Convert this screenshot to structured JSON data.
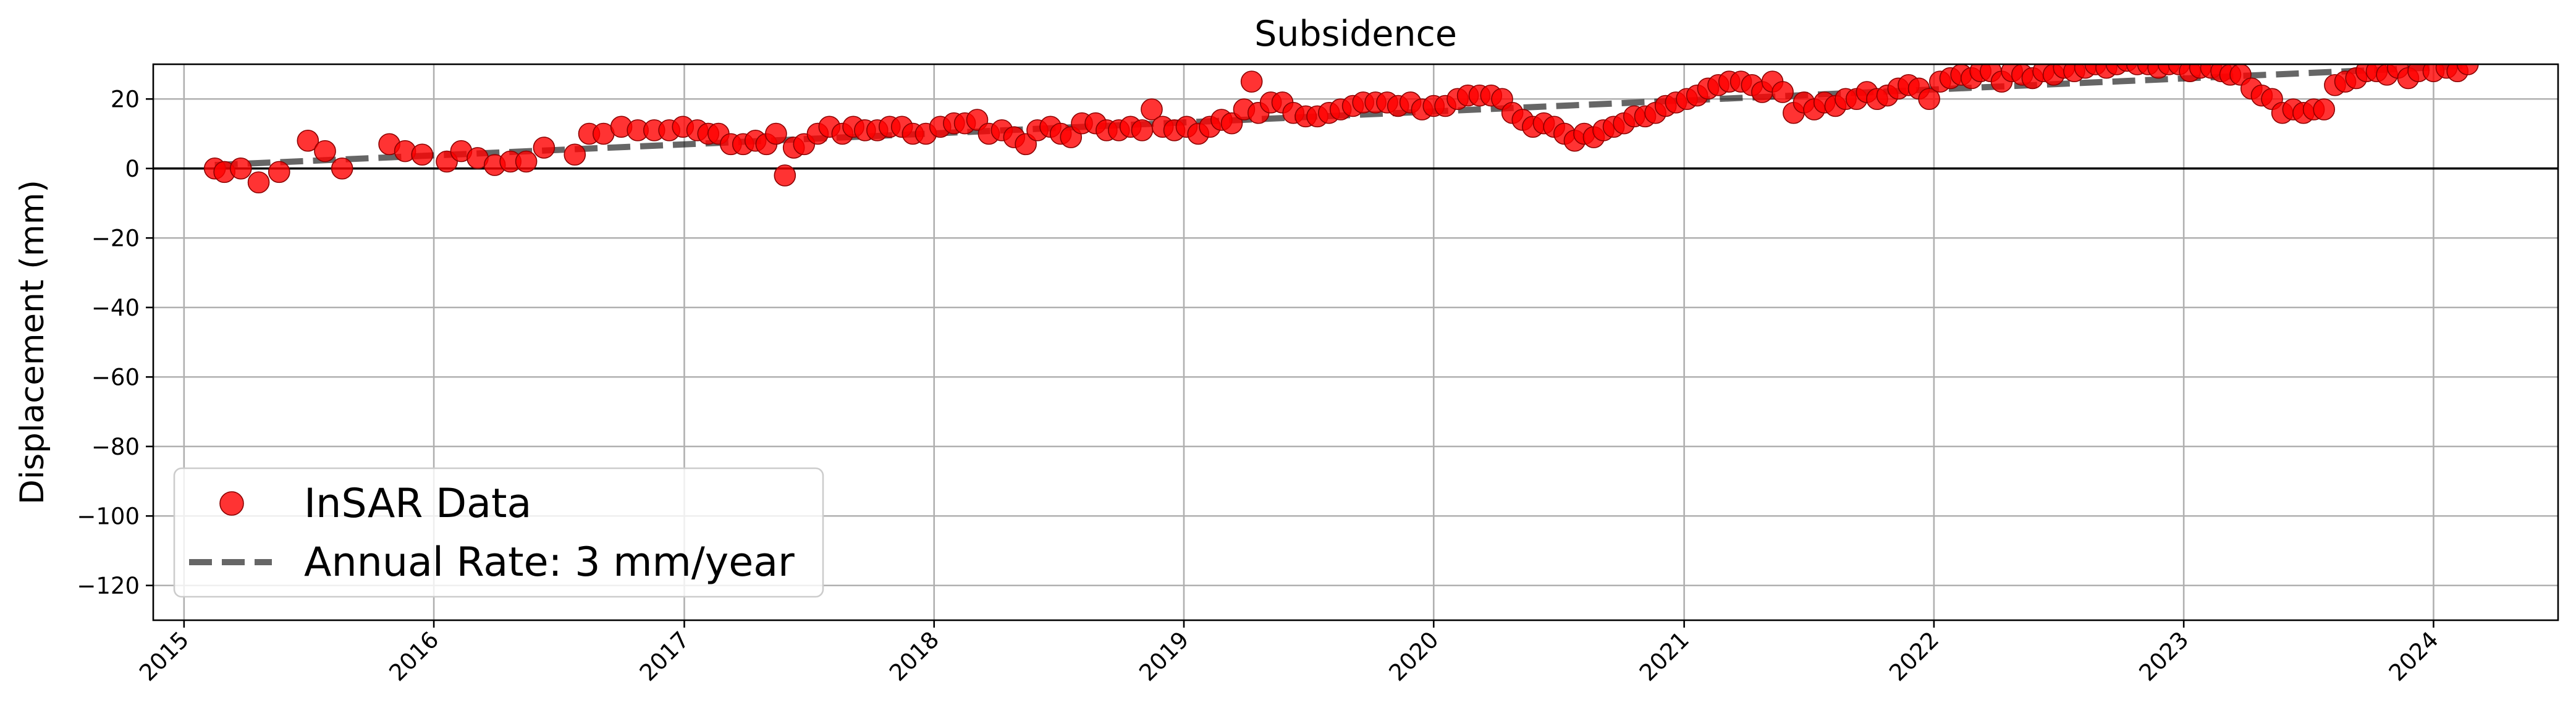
{
  "chart_data": {
    "type": "scatter",
    "title": "Subsidence",
    "xlabel": "",
    "ylabel": "Displacement (mm)",
    "xlim": [
      "2014-11-17",
      "2024-07-01"
    ],
    "ylim": [
      -130,
      30
    ],
    "x_ticks": [
      "2015",
      "2016",
      "2017",
      "2018",
      "2019",
      "2020",
      "2021",
      "2022",
      "2023",
      "2024"
    ],
    "x_tick_dates": [
      "2015-01-01",
      "2016-01-01",
      "2017-01-01",
      "2018-01-01",
      "2019-01-01",
      "2020-01-01",
      "2021-01-01",
      "2022-01-01",
      "2023-01-01",
      "2024-01-01"
    ],
    "y_ticks": [
      -120,
      -100,
      -80,
      -60,
      -40,
      -20,
      0,
      20
    ],
    "grid": true,
    "zero_line": 0,
    "legend_position": "lower-left",
    "colors": {
      "points": "#ff0000",
      "point_edge": "#8b0000",
      "trend": "#000000",
      "zero_line": "#000000",
      "grid": "#b0b0b0"
    },
    "series": [
      {
        "name": "InSAR Data",
        "type": "scatter",
        "points": [
          [
            "2015-02-15",
            0
          ],
          [
            "2015-03-01",
            -1
          ],
          [
            "2015-03-25",
            0
          ],
          [
            "2015-04-20",
            -4
          ],
          [
            "2015-05-20",
            -1
          ],
          [
            "2015-07-01",
            8
          ],
          [
            "2015-07-26",
            5
          ],
          [
            "2015-08-20",
            0
          ],
          [
            "2015-10-28",
            7
          ],
          [
            "2015-11-20",
            5
          ],
          [
            "2015-12-15",
            4
          ],
          [
            "2016-01-20",
            2
          ],
          [
            "2016-02-10",
            5
          ],
          [
            "2016-03-05",
            3
          ],
          [
            "2016-03-30",
            1
          ],
          [
            "2016-04-22",
            2
          ],
          [
            "2016-05-15",
            2
          ],
          [
            "2016-06-10",
            6
          ],
          [
            "2016-07-25",
            4
          ],
          [
            "2016-08-15",
            10
          ],
          [
            "2016-09-05",
            10
          ],
          [
            "2016-10-01",
            12
          ],
          [
            "2016-10-25",
            11
          ],
          [
            "2016-11-18",
            11
          ],
          [
            "2016-12-10",
            11
          ],
          [
            "2016-12-30",
            12
          ],
          [
            "2017-01-20",
            11
          ],
          [
            "2017-02-05",
            10
          ],
          [
            "2017-02-20",
            10
          ],
          [
            "2017-03-10",
            7
          ],
          [
            "2017-03-28",
            7
          ],
          [
            "2017-04-15",
            8
          ],
          [
            "2017-05-01",
            7
          ],
          [
            "2017-05-15",
            10
          ],
          [
            "2017-05-28",
            -2
          ],
          [
            "2017-06-10",
            6
          ],
          [
            "2017-06-25",
            7
          ],
          [
            "2017-07-15",
            10
          ],
          [
            "2017-08-01",
            12
          ],
          [
            "2017-08-20",
            10
          ],
          [
            "2017-09-05",
            12
          ],
          [
            "2017-09-22",
            11
          ],
          [
            "2017-10-10",
            11
          ],
          [
            "2017-10-28",
            12
          ],
          [
            "2017-11-15",
            12
          ],
          [
            "2017-12-01",
            10
          ],
          [
            "2017-12-20",
            10
          ],
          [
            "2018-01-10",
            12
          ],
          [
            "2018-01-30",
            13
          ],
          [
            "2018-02-15",
            13
          ],
          [
            "2018-03-05",
            14
          ],
          [
            "2018-03-22",
            10
          ],
          [
            "2018-04-10",
            11
          ],
          [
            "2018-04-28",
            9
          ],
          [
            "2018-05-15",
            7
          ],
          [
            "2018-06-01",
            11
          ],
          [
            "2018-06-20",
            12
          ],
          [
            "2018-07-05",
            10
          ],
          [
            "2018-07-20",
            9
          ],
          [
            "2018-08-05",
            13
          ],
          [
            "2018-08-25",
            13
          ],
          [
            "2018-09-10",
            11
          ],
          [
            "2018-09-28",
            11
          ],
          [
            "2018-10-15",
            12
          ],
          [
            "2018-11-01",
            11
          ],
          [
            "2018-11-15",
            17
          ],
          [
            "2018-12-01",
            12
          ],
          [
            "2018-12-18",
            11
          ],
          [
            "2019-01-05",
            12
          ],
          [
            "2019-01-22",
            10
          ],
          [
            "2019-02-08",
            12
          ],
          [
            "2019-02-25",
            14
          ],
          [
            "2019-03-12",
            13
          ],
          [
            "2019-03-30",
            17
          ],
          [
            "2019-04-10",
            25
          ],
          [
            "2019-04-20",
            16
          ],
          [
            "2019-05-08",
            19
          ],
          [
            "2019-05-25",
            19
          ],
          [
            "2019-06-10",
            16
          ],
          [
            "2019-06-28",
            15
          ],
          [
            "2019-07-15",
            15
          ],
          [
            "2019-08-01",
            16
          ],
          [
            "2019-08-18",
            17
          ],
          [
            "2019-09-05",
            18
          ],
          [
            "2019-09-20",
            19
          ],
          [
            "2019-10-08",
            19
          ],
          [
            "2019-10-25",
            19
          ],
          [
            "2019-11-10",
            18
          ],
          [
            "2019-11-28",
            19
          ],
          [
            "2019-12-15",
            17
          ],
          [
            "2020-01-01",
            18
          ],
          [
            "2020-01-18",
            18
          ],
          [
            "2020-02-05",
            20
          ],
          [
            "2020-02-20",
            21
          ],
          [
            "2020-03-08",
            21
          ],
          [
            "2020-03-25",
            21
          ],
          [
            "2020-04-10",
            20
          ],
          [
            "2020-04-25",
            16
          ],
          [
            "2020-05-10",
            14
          ],
          [
            "2020-05-25",
            12
          ],
          [
            "2020-06-10",
            13
          ],
          [
            "2020-06-25",
            12
          ],
          [
            "2020-07-10",
            10
          ],
          [
            "2020-07-25",
            8
          ],
          [
            "2020-08-08",
            10
          ],
          [
            "2020-08-22",
            9
          ],
          [
            "2020-09-05",
            11
          ],
          [
            "2020-09-20",
            12
          ],
          [
            "2020-10-05",
            13
          ],
          [
            "2020-10-20",
            15
          ],
          [
            "2020-11-05",
            15
          ],
          [
            "2020-11-20",
            16
          ],
          [
            "2020-12-05",
            18
          ],
          [
            "2020-12-20",
            19
          ],
          [
            "2021-01-05",
            20
          ],
          [
            "2021-01-20",
            21
          ],
          [
            "2021-02-05",
            23
          ],
          [
            "2021-02-20",
            24
          ],
          [
            "2021-03-08",
            25
          ],
          [
            "2021-03-25",
            25
          ],
          [
            "2021-04-10",
            24
          ],
          [
            "2021-04-25",
            22
          ],
          [
            "2021-05-10",
            25
          ],
          [
            "2021-05-25",
            22
          ],
          [
            "2021-06-10",
            16
          ],
          [
            "2021-06-25",
            19
          ],
          [
            "2021-07-10",
            17
          ],
          [
            "2021-07-25",
            19
          ],
          [
            "2021-08-10",
            18
          ],
          [
            "2021-08-25",
            20
          ],
          [
            "2021-09-10",
            20
          ],
          [
            "2021-09-25",
            22
          ],
          [
            "2021-10-10",
            20
          ],
          [
            "2021-10-25",
            21
          ],
          [
            "2021-11-10",
            23
          ],
          [
            "2021-11-25",
            24
          ],
          [
            "2021-12-10",
            23
          ],
          [
            "2021-12-25",
            20
          ],
          [
            "2022-01-10",
            25
          ],
          [
            "2022-01-25",
            26
          ],
          [
            "2022-02-10",
            27
          ],
          [
            "2022-02-25",
            26
          ],
          [
            "2022-03-10",
            28
          ],
          [
            "2022-03-25",
            28
          ],
          [
            "2022-04-10",
            25
          ],
          [
            "2022-04-25",
            28
          ],
          [
            "2022-05-10",
            27
          ],
          [
            "2022-05-25",
            26
          ],
          [
            "2022-06-10",
            28
          ],
          [
            "2022-06-25",
            27
          ],
          [
            "2022-07-10",
            29
          ],
          [
            "2022-07-25",
            28
          ],
          [
            "2022-08-10",
            29
          ],
          [
            "2022-08-25",
            30
          ],
          [
            "2022-09-10",
            29
          ],
          [
            "2022-09-25",
            30
          ],
          [
            "2022-10-10",
            31
          ],
          [
            "2022-10-25",
            30
          ],
          [
            "2022-11-10",
            30
          ],
          [
            "2022-11-25",
            29
          ],
          [
            "2022-12-10",
            30
          ],
          [
            "2022-12-25",
            30
          ],
          [
            "2023-01-10",
            28
          ],
          [
            "2023-01-25",
            29
          ],
          [
            "2023-02-10",
            29
          ],
          [
            "2023-02-25",
            28
          ],
          [
            "2023-03-10",
            27
          ],
          [
            "2023-03-25",
            27
          ],
          [
            "2023-04-10",
            23
          ],
          [
            "2023-04-25",
            21
          ],
          [
            "2023-05-10",
            20
          ],
          [
            "2023-05-25",
            16
          ],
          [
            "2023-06-10",
            17
          ],
          [
            "2023-06-25",
            16
          ],
          [
            "2023-07-10",
            17
          ],
          [
            "2023-07-25",
            17
          ],
          [
            "2023-08-10",
            24
          ],
          [
            "2023-08-25",
            25
          ],
          [
            "2023-09-10",
            26
          ],
          [
            "2023-09-25",
            28
          ],
          [
            "2023-10-10",
            28
          ],
          [
            "2023-10-25",
            27
          ],
          [
            "2023-11-10",
            29
          ],
          [
            "2023-11-25",
            26
          ],
          [
            "2023-12-10",
            28
          ],
          [
            "2024-01-01",
            28
          ],
          [
            "2024-01-20",
            29
          ],
          [
            "2024-02-05",
            28
          ],
          [
            "2024-02-20",
            30
          ]
        ]
      },
      {
        "name": "Annual Rate: 3 mm/year",
        "type": "line",
        "style": "dashed",
        "points": [
          [
            "2015-02-15",
            1.0
          ],
          [
            "2024-02-20",
            29.5
          ]
        ]
      }
    ]
  }
}
